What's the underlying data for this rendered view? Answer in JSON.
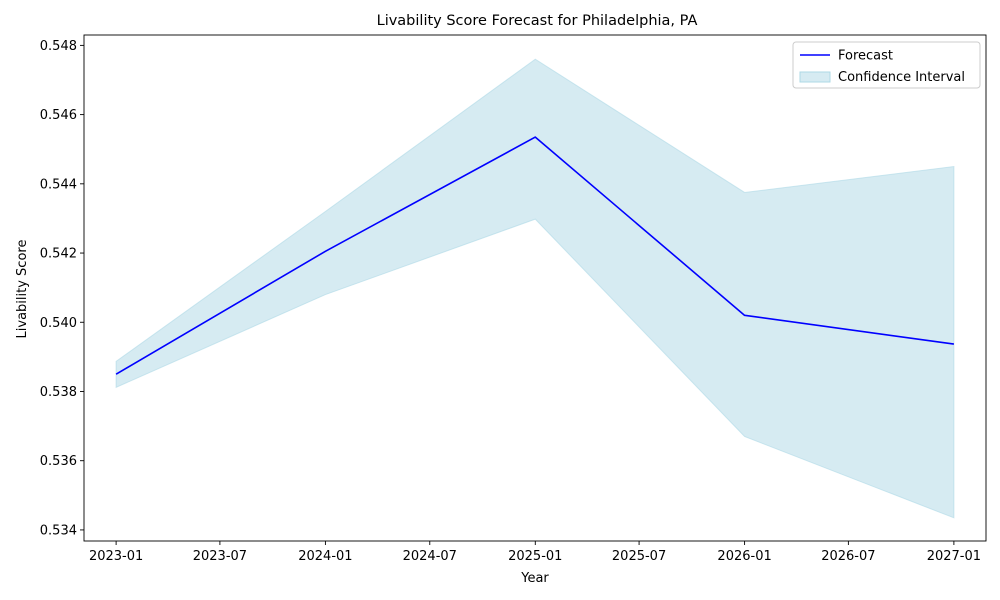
{
  "chart_data": {
    "type": "line",
    "title": "Livability Score Forecast for Philadelphia, PA",
    "xlabel": "Year",
    "ylabel": "Livability Score",
    "xlim": [
      "2022-11-06",
      "2027-02-26"
    ],
    "ylim": [
      0.53368,
      0.5483
    ],
    "x_ticks": [
      "2023-01",
      "2023-07",
      "2024-01",
      "2024-07",
      "2025-01",
      "2025-07",
      "2026-01",
      "2026-07",
      "2027-01"
    ],
    "y_ticks": [
      "0.534",
      "0.536",
      "0.538",
      "0.540",
      "0.542",
      "0.544",
      "0.546",
      "0.548"
    ],
    "series": [
      {
        "name": "Forecast",
        "color": "#0000ff",
        "x": [
          "2023-01-01",
          "2024-01-01",
          "2025-01-01",
          "2026-01-01",
          "2027-01-01"
        ],
        "values": [
          0.5385,
          0.54205,
          0.54535,
          0.5402,
          0.53937
        ]
      }
    ],
    "confidence_interval": {
      "name": "Confidence Interval",
      "color": "#add8e6",
      "lower": [
        0.53812,
        0.5408,
        0.54298,
        0.5367,
        0.53435
      ],
      "upper": [
        0.53887,
        0.5432,
        0.5476,
        0.54375,
        0.5445
      ]
    },
    "legend": {
      "placement": "top-right",
      "entries": [
        "Forecast",
        "Confidence Interval"
      ]
    },
    "grid": false
  }
}
